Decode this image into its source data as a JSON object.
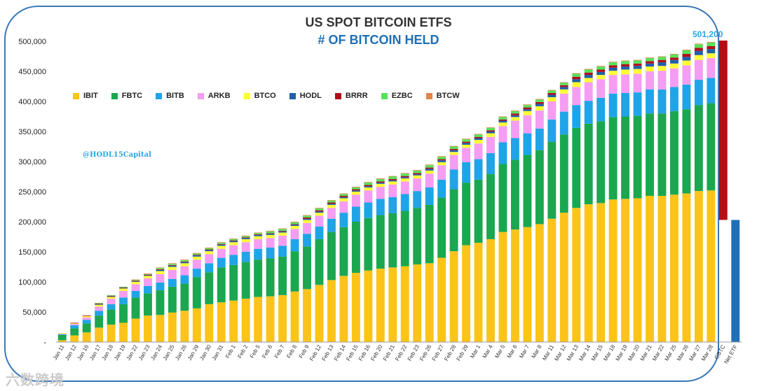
{
  "title": "US SPOT BITCOIN ETFS",
  "subtitle": "# OF BITCOIN HELD",
  "total_label": "501,200",
  "credit": "@HODL15Capital",
  "watermark": "六数跨境",
  "chart_data": {
    "type": "bar",
    "stacked": true,
    "ylim": [
      0,
      500000
    ],
    "yticks": [
      "-",
      "50,000",
      "100,000",
      "150,000",
      "200,000",
      "250,000",
      "300,000",
      "350,000",
      "400,000",
      "450,000",
      "500,000"
    ],
    "categories": [
      "Jan 11",
      "Jan 12",
      "Jan 16",
      "Jan 17",
      "Jan 18",
      "Jan 19",
      "Jan 22",
      "Jan 23",
      "Jan 24",
      "Jan 25",
      "Jan 26",
      "Jan 29",
      "Jan 30",
      "Jan 31",
      "Feb 1",
      "Feb 2",
      "Feb 5",
      "Feb 6",
      "Feb 7",
      "Feb 8",
      "Feb 9",
      "Feb 12",
      "Feb 13",
      "Feb 14",
      "Feb 15",
      "Feb 16",
      "Feb 20",
      "Feb 21",
      "Feb 22",
      "Feb 23",
      "Feb 26",
      "Feb 27",
      "Feb 28",
      "Feb 29",
      "Mar 1",
      "Mar 4",
      "Mar 5",
      "Mar 6",
      "Mar 7",
      "Mar 8",
      "Mar 11",
      "Mar 12",
      "Mar 13",
      "Mar 14",
      "Mar 15",
      "Mar 18",
      "Mar 19",
      "Mar 20",
      "Mar 21",
      "Mar 22",
      "Mar 25",
      "Mar 26",
      "Mar 27",
      "Mar 28",
      "GBTC",
      "Net ETF"
    ],
    "legend": [
      "IBIT",
      "FBTC",
      "BITB",
      "ARKB",
      "BTCO",
      "HODL",
      "BRRR",
      "EZBC",
      "BTCW"
    ],
    "colors": {
      "IBIT": "#fcc419",
      "FBTC": "#1aa74f",
      "BITB": "#1fa4e8",
      "ARKB": "#f59df2",
      "BTCO": "#fdfd36",
      "HODL": "#1f5fa8",
      "BRRR": "#b00f1a",
      "EZBC": "#55e35a",
      "BTCW": "#e0864a",
      "GBTC": "#b50d13",
      "Net ETF": "#1e6fb8"
    },
    "totals": [
      15000,
      32000,
      44000,
      67000,
      78000,
      94000,
      104000,
      117000,
      125000,
      132000,
      138000,
      148000,
      157000,
      166000,
      173000,
      178000,
      183000,
      186000,
      192000,
      203000,
      214000,
      225000,
      235000,
      247000,
      258000,
      266000,
      272000,
      276000,
      282000,
      289000,
      298000,
      311000,
      325000,
      337000,
      346000,
      358000,
      375000,
      386000,
      396000,
      405000,
      420000,
      433000,
      448000,
      452000,
      458000,
      464000,
      467000,
      469000,
      472000,
      474000,
      478000,
      486000,
      497000,
      501200
    ],
    "IBIT": [
      3000,
      11000,
      16000,
      24000,
      29000,
      32000,
      39000,
      44000,
      45000,
      49000,
      52000,
      56000,
      63000,
      66000,
      69000,
      72000,
      75000,
      76000,
      78000,
      84000,
      88000,
      95000,
      103000,
      110000,
      115000,
      119000,
      122000,
      124000,
      126000,
      129000,
      131000,
      140000,
      151000,
      161000,
      165000,
      171000,
      183000,
      187000,
      191000,
      196000,
      205000,
      215000,
      223000,
      229000,
      231000,
      237000,
      238000,
      239000,
      243000,
      243000,
      245000,
      247000,
      251000,
      252000
    ],
    "FBTC": [
      9000,
      12000,
      15000,
      20000,
      25000,
      31000,
      35000,
      37000,
      41000,
      43000,
      45000,
      52000,
      53000,
      58000,
      59000,
      61000,
      62000,
      63000,
      64000,
      67000,
      71000,
      76000,
      80000,
      81000,
      85000,
      87000,
      89000,
      90000,
      92000,
      94000,
      97000,
      100000,
      103000,
      104000,
      105000,
      108000,
      113000,
      116000,
      120000,
      123000,
      128000,
      130000,
      133000,
      134000,
      136000,
      137000,
      137000,
      137000,
      137000,
      137000,
      139000,
      140000,
      143000,
      145000
    ],
    "BITB": [
      1000,
      5000,
      6000,
      8000,
      9000,
      11000,
      11000,
      12000,
      13000,
      13000,
      14000,
      14000,
      15000,
      16000,
      17000,
      17000,
      18000,
      18000,
      18000,
      20000,
      21000,
      21000,
      22000,
      24000,
      25000,
      26000,
      27000,
      27000,
      28000,
      28000,
      29000,
      30000,
      33000,
      34000,
      34000,
      35000,
      36000,
      36000,
      36000,
      36000,
      37000,
      38000,
      38000,
      38000,
      39000,
      39000,
      39000,
      39000,
      40000,
      40000,
      40000,
      41000,
      42000,
      42000
    ],
    "ARKB": [
      1000,
      2000,
      4000,
      7000,
      9000,
      11000,
      11000,
      13000,
      14000,
      15000,
      15000,
      15000,
      15000,
      15000,
      16000,
      16000,
      16000,
      16000,
      17000,
      17000,
      18000,
      18000,
      18000,
      19000,
      20000,
      20000,
      20000,
      21000,
      21000,
      21000,
      23000,
      24000,
      24000,
      24000,
      26000,
      27000,
      27000,
      29000,
      30000,
      30000,
      30000,
      30000,
      30000,
      31000,
      31000,
      31000,
      31000,
      31000,
      30000,
      31000,
      31000,
      32000,
      33000,
      33000
    ],
    "BTCO": [
      1000,
      1000,
      2000,
      3000,
      3000,
      4000,
      4000,
      4000,
      5000,
      5000,
      5000,
      5000,
      5000,
      5000,
      5000,
      5000,
      5000,
      5000,
      5000,
      5000,
      5000,
      5000,
      5000,
      5000,
      5000,
      5000,
      5000,
      5000,
      5000,
      5000,
      5000,
      5000,
      5000,
      5000,
      6000,
      6000,
      6000,
      6000,
      7000,
      7000,
      7000,
      7000,
      8000,
      7000,
      7000,
      7000,
      8000,
      8000,
      8000,
      8000,
      8000,
      8000,
      8000,
      8000
    ],
    "HODL": [
      0,
      0,
      0,
      1000,
      1000,
      1000,
      1000,
      1000,
      2000,
      2000,
      2000,
      2000,
      2000,
      2000,
      2000,
      2000,
      2000,
      2000,
      2000,
      2000,
      2000,
      2000,
      2000,
      2000,
      2000,
      2000,
      2000,
      2000,
      2000,
      2000,
      3000,
      3000,
      3000,
      3000,
      3000,
      3000,
      3000,
      3000,
      3000,
      4000,
      4000,
      4000,
      5000,
      5000,
      5000,
      5000,
      5000,
      5000,
      5000,
      6000,
      6000,
      6000,
      7000,
      7000
    ],
    "BRRR": [
      0,
      1000,
      1000,
      1000,
      1000,
      1000,
      1000,
      1000,
      1000,
      1000,
      1000,
      1000,
      1000,
      1000,
      1000,
      1000,
      1000,
      1000,
      1000,
      1000,
      2000,
      2000,
      2000,
      2000,
      2000,
      2000,
      2000,
      2000,
      2000,
      2000,
      2000,
      2000,
      2000,
      2000,
      2000,
      2000,
      2000,
      3000,
      3000,
      3000,
      3000,
      3000,
      4000,
      4000,
      4000,
      4000,
      4000,
      4000,
      4000,
      4000,
      4000,
      5000,
      5000,
      5000
    ],
    "EZBC": [
      0,
      0,
      0,
      1000,
      1000,
      1000,
      1000,
      1000,
      2000,
      2000,
      2000,
      2000,
      2000,
      2000,
      2000,
      2000,
      2000,
      3000,
      3000,
      3000,
      3000,
      3000,
      3000,
      3000,
      3000,
      4000,
      4000,
      4000,
      4000,
      4000,
      4000,
      4000,
      4000,
      4000,
      4000,
      4000,
      4000,
      4000,
      4000,
      4000,
      4000,
      4000,
      5000,
      5000,
      5000,
      5000,
      5000,
      5000,
      5000,
      5000,
      5000,
      6000,
      6000,
      6000
    ],
    "BTCW": [
      0,
      0,
      0,
      0,
      0,
      0,
      1000,
      1000,
      1000,
      1000,
      1000,
      1000,
      1000,
      1000,
      1000,
      1000,
      1000,
      1000,
      1000,
      1000,
      1000,
      1000,
      1000,
      1000,
      1000,
      1000,
      1000,
      1000,
      1000,
      1000,
      1000,
      1000,
      1000,
      1000,
      1000,
      1000,
      1000,
      1000,
      1000,
      1000,
      1000,
      1000,
      1000,
      1000,
      1000,
      1000,
      1000,
      1000,
      1000,
      1000,
      1000,
      1000,
      1000,
      1000
    ],
    "waterfall": {
      "GBTC": {
        "from": 501200,
        "to": 203000
      },
      "Net ETF": {
        "from": 0,
        "to": 203000
      }
    }
  }
}
